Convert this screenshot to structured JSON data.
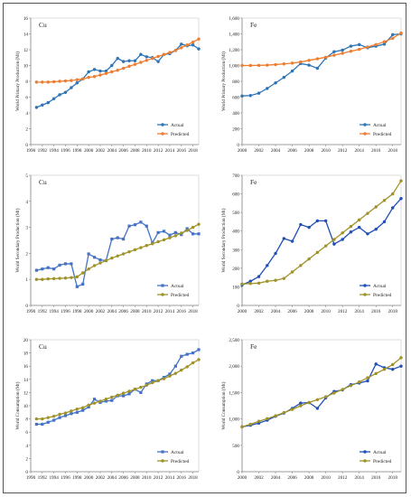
{
  "chart_data": [
    {
      "type": "line",
      "panel_label": "Cu",
      "ylabel": "World Primary Production (Mt)",
      "ylim": [
        0,
        16
      ],
      "yticks": [
        0,
        2,
        4,
        6,
        8,
        10,
        12,
        14,
        16
      ],
      "ytick_labels": [
        "0",
        "2",
        "4",
        "6",
        "8",
        "10",
        "12",
        "14",
        "16"
      ],
      "xlim": [
        1990,
        2019
      ],
      "xticks": [
        1990,
        1992,
        1994,
        1996,
        1998,
        2000,
        2002,
        2004,
        2006,
        2008,
        2010,
        2012,
        2014,
        2016,
        2018
      ],
      "xtick_labels": [
        "1990",
        "1992",
        "1994",
        "1996",
        "1998",
        "2000",
        "2002",
        "2004",
        "2006",
        "2008",
        "2010",
        "2012",
        "2014",
        "2016",
        "2018"
      ],
      "x": [
        1991,
        1992,
        1993,
        1994,
        1995,
        1996,
        1997,
        1998,
        1999,
        2000,
        2001,
        2002,
        2003,
        2004,
        2005,
        2006,
        2007,
        2008,
        2009,
        2010,
        2011,
        2012,
        2013,
        2014,
        2015,
        2016,
        2017,
        2018,
        2019
      ],
      "legend": "bottom-right",
      "series": [
        {
          "name": "Actual",
          "color": "#2e75b6",
          "marker": "circle",
          "values": [
            4.7,
            5.0,
            5.3,
            5.8,
            6.3,
            6.6,
            7.2,
            7.8,
            8.3,
            9.2,
            9.5,
            9.3,
            9.3,
            10.0,
            10.9,
            10.5,
            10.6,
            10.6,
            11.4,
            11.1,
            11.0,
            10.5,
            11.4,
            11.5,
            11.9,
            12.7,
            12.5,
            12.6,
            12.1
          ]
        },
        {
          "name": "Predicted",
          "color": "#ed7d31",
          "marker": "circle",
          "values": [
            7.9,
            7.9,
            7.9,
            7.95,
            8.0,
            8.05,
            8.1,
            8.2,
            8.3,
            8.5,
            8.6,
            8.8,
            9.0,
            9.2,
            9.4,
            9.65,
            9.9,
            10.15,
            10.4,
            10.65,
            10.9,
            11.15,
            11.4,
            11.65,
            11.9,
            12.25,
            12.6,
            12.95,
            13.35
          ]
        }
      ]
    },
    {
      "type": "line",
      "panel_label": "Fe",
      "ylabel": "World Primary Production (Mt)",
      "ylim": [
        0,
        1600
      ],
      "yticks": [
        0,
        200,
        400,
        600,
        800,
        1000,
        1200,
        1400,
        1600
      ],
      "ytick_labels": [
        "0",
        "200",
        "400",
        "600",
        "800",
        "1,000",
        "1,200",
        "1,400",
        "1,600"
      ],
      "xlim": [
        2000,
        2019
      ],
      "xticks": [
        2000,
        2002,
        2004,
        2006,
        2008,
        2010,
        2012,
        2014,
        2016,
        2018
      ],
      "xtick_labels": [
        "2000",
        "2002",
        "2004",
        "2006",
        "2008",
        "2010",
        "2012",
        "2014",
        "2016",
        "2018"
      ],
      "x": [
        2000,
        2001,
        2002,
        2003,
        2004,
        2005,
        2006,
        2007,
        2008,
        2009,
        2010,
        2011,
        2012,
        2013,
        2014,
        2015,
        2016,
        2017,
        2018,
        2019
      ],
      "legend": "bottom-right",
      "series": [
        {
          "name": "Actual",
          "color": "#2e75b6",
          "marker": "circle",
          "values": [
            615,
            620,
            650,
            710,
            780,
            850,
            930,
            1025,
            1005,
            965,
            1095,
            1175,
            1195,
            1245,
            1265,
            1225,
            1245,
            1270,
            1390,
            1400
          ]
        },
        {
          "name": "Predicted",
          "color": "#ed7d31",
          "marker": "circle",
          "values": [
            1000,
            1000,
            1002,
            1005,
            1012,
            1020,
            1030,
            1045,
            1065,
            1085,
            1105,
            1130,
            1155,
            1180,
            1205,
            1235,
            1265,
            1300,
            1345,
            1410
          ]
        }
      ]
    },
    {
      "type": "line",
      "panel_label": "Cu",
      "ylabel": "World Secondary Production (Mt)",
      "ylim": [
        0,
        5
      ],
      "yticks": [
        0,
        1,
        2,
        3,
        4,
        5
      ],
      "ytick_labels": [
        "0",
        "1",
        "2",
        "3",
        "4",
        "5"
      ],
      "xlim": [
        1990,
        2019
      ],
      "xticks": [
        1990,
        1992,
        1994,
        1996,
        1998,
        2000,
        2002,
        2004,
        2006,
        2008,
        2010,
        2012,
        2014,
        2016,
        2018
      ],
      "xtick_labels": [
        "1990",
        "1992",
        "1994",
        "1996",
        "1998",
        "2000",
        "2002",
        "2004",
        "2006",
        "2008",
        "2010",
        "2012",
        "2014",
        "2016",
        "2018"
      ],
      "x": [
        1991,
        1992,
        1993,
        1994,
        1995,
        1996,
        1997,
        1998,
        1999,
        2000,
        2001,
        2002,
        2003,
        2004,
        2005,
        2006,
        2007,
        2008,
        2009,
        2010,
        2011,
        2012,
        2013,
        2014,
        2015,
        2016,
        2017,
        2018,
        2019
      ],
      "legend": "bottom-right",
      "series": [
        {
          "name": "Actual",
          "color": "#4472c4",
          "marker": "square",
          "values": [
            1.35,
            1.4,
            1.45,
            1.4,
            1.55,
            1.6,
            1.6,
            0.72,
            0.82,
            1.98,
            1.85,
            1.75,
            1.72,
            2.55,
            2.6,
            2.55,
            3.05,
            3.1,
            3.2,
            3.05,
            2.4,
            2.8,
            2.85,
            2.7,
            2.8,
            2.72,
            2.95,
            2.75,
            2.75
          ]
        },
        {
          "name": "Predicted",
          "color": "#a09228",
          "marker": "circle",
          "values": [
            1.0,
            1.0,
            1.02,
            1.03,
            1.04,
            1.05,
            1.07,
            1.1,
            1.25,
            1.4,
            1.53,
            1.63,
            1.72,
            1.82,
            1.9,
            1.98,
            2.06,
            2.14,
            2.22,
            2.3,
            2.37,
            2.45,
            2.52,
            2.6,
            2.68,
            2.78,
            2.88,
            3.0,
            3.12
          ]
        }
      ]
    },
    {
      "type": "line",
      "panel_label": "Fe",
      "ylabel": "World Secondary Production (Mt)",
      "ylim": [
        0,
        700
      ],
      "yticks": [
        0,
        100,
        200,
        300,
        400,
        500,
        600,
        700
      ],
      "ytick_labels": [
        "0",
        "100",
        "200",
        "300",
        "400",
        "500",
        "600",
        "700"
      ],
      "xlim": [
        2000,
        2019
      ],
      "xticks": [
        2000,
        2002,
        2004,
        2006,
        2008,
        2010,
        2012,
        2014,
        2016,
        2018
      ],
      "xtick_labels": [
        "2000",
        "2002",
        "2004",
        "2006",
        "2008",
        "2010",
        "2012",
        "2014",
        "2016",
        "2018"
      ],
      "x": [
        2000,
        2001,
        2002,
        2003,
        2004,
        2005,
        2006,
        2007,
        2008,
        2009,
        2010,
        2011,
        2012,
        2013,
        2014,
        2015,
        2016,
        2017,
        2018,
        2019
      ],
      "legend": "bottom-right",
      "series": [
        {
          "name": "Actual",
          "color": "#1f4eb4",
          "marker": "circle",
          "values": [
            110,
            130,
            155,
            215,
            280,
            360,
            345,
            435,
            420,
            455,
            455,
            330,
            355,
            395,
            420,
            385,
            410,
            450,
            525,
            575
          ]
        },
        {
          "name": "Predicted",
          "color": "#a09228",
          "marker": "circle",
          "values": [
            115,
            118,
            120,
            130,
            135,
            145,
            180,
            215,
            250,
            285,
            320,
            355,
            390,
            425,
            460,
            495,
            530,
            565,
            600,
            670
          ]
        }
      ]
    },
    {
      "type": "line",
      "panel_label": "Cu",
      "ylabel": "World Consumption (Mt)",
      "ylim": [
        0,
        20
      ],
      "yticks": [
        0,
        2,
        4,
        6,
        8,
        10,
        12,
        14,
        16,
        18,
        20
      ],
      "ytick_labels": [
        "0",
        "2",
        "4",
        "6",
        "8",
        "10",
        "12",
        "14",
        "16",
        "18",
        "20"
      ],
      "xlim": [
        1990,
        2019
      ],
      "xticks": [
        1990,
        1992,
        1994,
        1996,
        1998,
        2000,
        2002,
        2004,
        2006,
        2008,
        2010,
        2012,
        2014,
        2016,
        2018
      ],
      "xtick_labels": [
        "1990",
        "1992",
        "1994",
        "1996",
        "1998",
        "2000",
        "2002",
        "2004",
        "2006",
        "2008",
        "2010",
        "2012",
        "2014",
        "2016",
        "2018"
      ],
      "x": [
        1991,
        1992,
        1993,
        1994,
        1995,
        1996,
        1997,
        1998,
        1999,
        2000,
        2001,
        2002,
        2003,
        2004,
        2005,
        2006,
        2007,
        2008,
        2009,
        2010,
        2011,
        2012,
        2013,
        2014,
        2015,
        2016,
        2017,
        2018,
        2019
      ],
      "legend": "bottom-right",
      "series": [
        {
          "name": "Actual",
          "color": "#4472c4",
          "marker": "square",
          "values": [
            7.2,
            7.2,
            7.5,
            7.8,
            8.2,
            8.5,
            8.8,
            9.0,
            9.3,
            9.8,
            11.0,
            10.5,
            10.7,
            10.8,
            11.5,
            11.5,
            11.8,
            12.5,
            12.0,
            13.3,
            13.8,
            13.8,
            14.3,
            14.8,
            16.0,
            17.5,
            17.8,
            18.0,
            18.5
          ]
        },
        {
          "name": "Predicted",
          "color": "#a09228",
          "marker": "circle",
          "values": [
            8.0,
            8.0,
            8.2,
            8.4,
            8.7,
            8.9,
            9.2,
            9.5,
            9.7,
            10.1,
            10.4,
            10.7,
            11.0,
            11.3,
            11.6,
            11.9,
            12.2,
            12.5,
            12.8,
            13.1,
            13.5,
            13.8,
            14.1,
            14.5,
            14.9,
            15.4,
            15.9,
            16.5,
            17.0
          ]
        }
      ]
    },
    {
      "type": "line",
      "panel_label": "Fe",
      "ylabel": "World Consumption (Mt)",
      "ylim": [
        0,
        2500
      ],
      "yticks": [
        0,
        500,
        1000,
        1500,
        2000,
        2500
      ],
      "ytick_labels": [
        "0",
        "500",
        "1,000",
        "1,500",
        "2,000",
        "2,500"
      ],
      "xlim": [
        2000,
        2019
      ],
      "xticks": [
        2000,
        2002,
        2004,
        2006,
        2008,
        2010,
        2012,
        2014,
        2016,
        2018
      ],
      "xtick_labels": [
        "2000",
        "2002",
        "2004",
        "2006",
        "2008",
        "2010",
        "2012",
        "2014",
        "2016",
        "2018"
      ],
      "x": [
        2000,
        2001,
        2002,
        2003,
        2004,
        2005,
        2006,
        2007,
        2008,
        2009,
        2010,
        2011,
        2012,
        2013,
        2014,
        2015,
        2016,
        2017,
        2018,
        2019
      ],
      "legend": "bottom-right",
      "series": [
        {
          "name": "Actual",
          "color": "#1f4eb4",
          "marker": "circle",
          "values": [
            850,
            880,
            920,
            975,
            1050,
            1110,
            1200,
            1300,
            1310,
            1200,
            1400,
            1520,
            1550,
            1650,
            1680,
            1720,
            2040,
            1970,
            1940,
            2000
          ]
        },
        {
          "name": "Predicted",
          "color": "#a09228",
          "marker": "circle",
          "values": [
            850,
            900,
            955,
            1005,
            1060,
            1120,
            1180,
            1250,
            1310,
            1365,
            1420,
            1490,
            1560,
            1630,
            1700,
            1780,
            1860,
            1940,
            2030,
            2160
          ]
        }
      ]
    }
  ]
}
